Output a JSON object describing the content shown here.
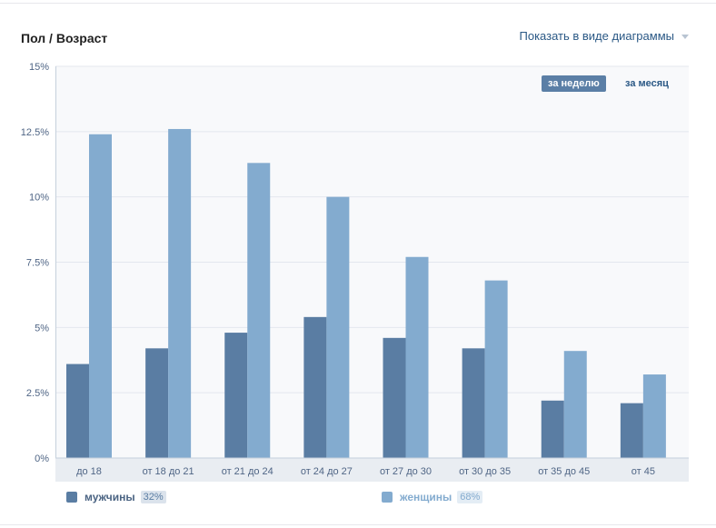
{
  "header": {
    "title": "Пол / Возраст",
    "view_toggle_label": "Показать в виде диаграммы"
  },
  "period": {
    "week_label": "за неделю",
    "month_label": "за месяц",
    "active": "week"
  },
  "legend": {
    "men_label": "мужчины",
    "men_share": "32%",
    "women_label": "женщины",
    "women_share": "68%"
  },
  "colors": {
    "men": "#5a7da3",
    "women": "#83abcf",
    "plot_background": "#f8f9fb",
    "gridline": "#e3e7ee",
    "axis_text": "#4f6585"
  },
  "chart_data": {
    "type": "bar",
    "title": "Пол / Возраст",
    "xlabel": "",
    "ylabel": "",
    "categories": [
      "до 18",
      "от 18 до 21",
      "от 21 до 24",
      "от 24 до 27",
      "от 27 до 30",
      "от 30 до 35",
      "от 35 до 45",
      "от 45"
    ],
    "series": [
      {
        "name": "мужчины",
        "values": [
          3.6,
          4.2,
          4.8,
          5.4,
          4.6,
          4.2,
          2.2,
          2.1
        ]
      },
      {
        "name": "женщины",
        "values": [
          12.4,
          12.6,
          11.3,
          10.0,
          7.7,
          6.8,
          4.1,
          3.2
        ]
      }
    ],
    "yticks": [
      "0%",
      "2.5%",
      "5%",
      "7.5%",
      "10%",
      "12.5%",
      "15%"
    ],
    "ylim": [
      0,
      15
    ],
    "grid": true,
    "legend_position": "bottom"
  }
}
